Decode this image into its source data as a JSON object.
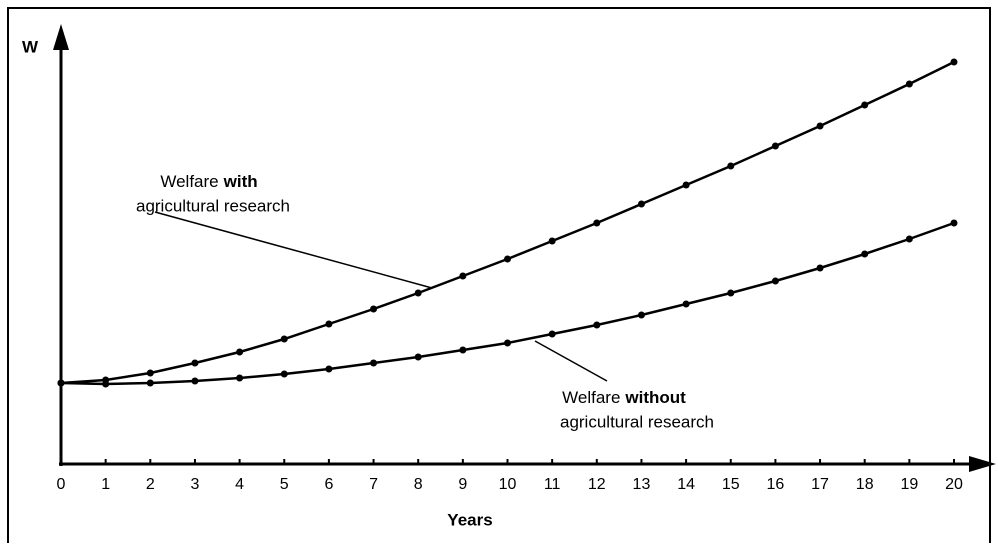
{
  "chart_data": {
    "type": "line",
    "y_label": "W",
    "x_label": "Years",
    "x": [
      0,
      1,
      2,
      3,
      4,
      5,
      6,
      7,
      8,
      9,
      10,
      11,
      12,
      13,
      14,
      15,
      16,
      17,
      18,
      19,
      20
    ],
    "xlim": [
      0,
      20
    ],
    "xticks": [
      0,
      1,
      2,
      3,
      4,
      5,
      6,
      7,
      8,
      9,
      10,
      11,
      12,
      13,
      14,
      15,
      16,
      17,
      18,
      19,
      20
    ],
    "ylim": [
      0,
      110
    ],
    "series": [
      {
        "label": {
          "text": "Welfare",
          "bold": "with",
          "text2": "agricultural research"
        },
        "color": "#000000",
        "values": [
          20.25,
          21,
          22.75,
          25.25,
          28,
          31.25,
          35,
          38.75,
          42.75,
          47,
          51.25,
          55.75,
          60.25,
          65,
          69.75,
          74.5,
          79.5,
          84.5,
          89.75,
          95,
          100.5
        ]
      },
      {
        "label": {
          "text": "Welfare",
          "bold": "without",
          "text2": "agricultural research"
        },
        "color": "#000000",
        "values": [
          20.25,
          20,
          20.25,
          20.75,
          21.5,
          22.5,
          23.75,
          25.25,
          26.75,
          28.5,
          30.25,
          32.5,
          34.75,
          37.25,
          40,
          42.75,
          45.75,
          49,
          52.5,
          56.25,
          60.25
        ]
      }
    ]
  }
}
